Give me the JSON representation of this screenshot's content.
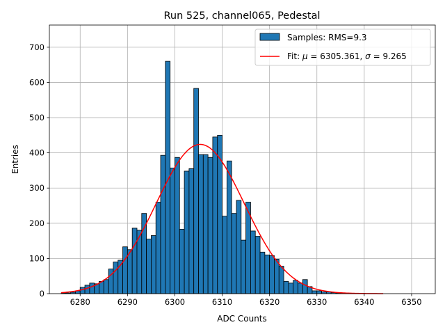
{
  "chart_data": {
    "type": "bar",
    "title": "Run 525, channel065, Pedestal",
    "xlabel": "ADC Counts",
    "ylabel": "Entries",
    "xlim": [
      6273.5,
      6355
    ],
    "ylim": [
      0,
      763
    ],
    "xticks": [
      6280,
      6290,
      6300,
      6310,
      6320,
      6330,
      6340,
      6350
    ],
    "yticks": [
      0,
      100,
      200,
      300,
      400,
      500,
      600,
      700
    ],
    "grid": true,
    "legend_position": "top-right",
    "bin_width": 1,
    "bin_left_edges": [
      6276,
      6277,
      6278,
      6279,
      6280,
      6281,
      6282,
      6283,
      6284,
      6285,
      6286,
      6287,
      6288,
      6289,
      6290,
      6291,
      6292,
      6293,
      6294,
      6295,
      6296,
      6297,
      6298,
      6299,
      6300,
      6301,
      6302,
      6303,
      6304,
      6305,
      6306,
      6307,
      6308,
      6309,
      6310,
      6311,
      6312,
      6313,
      6314,
      6315,
      6316,
      6317,
      6318,
      6319,
      6320,
      6321,
      6322,
      6323,
      6324,
      6325,
      6326,
      6327,
      6328,
      6329,
      6330,
      6331,
      6332,
      6333,
      6334,
      6335,
      6336,
      6337,
      6338,
      6339,
      6340
    ],
    "counts": [
      2,
      2,
      4,
      8,
      18,
      24,
      30,
      28,
      35,
      40,
      70,
      90,
      95,
      133,
      125,
      186,
      180,
      228,
      155,
      165,
      260,
      393,
      660,
      357,
      387,
      183,
      348,
      355,
      583,
      395,
      395,
      387,
      445,
      450,
      220,
      377,
      228,
      265,
      152,
      260,
      178,
      163,
      118,
      110,
      108,
      98,
      78,
      35,
      30,
      38,
      30,
      40,
      20,
      8,
      8,
      5,
      5,
      3,
      2,
      1,
      1,
      1,
      1,
      0,
      0
    ],
    "series": [
      {
        "name": "Samples",
        "type": "histogram",
        "label": "Samples: RMS=9.3",
        "color": "#1f77b4",
        "edge_color": "#000000"
      },
      {
        "name": "Fit",
        "type": "line",
        "label": "Fit: μ = 6305.361, σ = 9.265",
        "color": "#ff0000",
        "mu": 6305.361,
        "sigma": 9.265,
        "amplitude": 424,
        "x_range": [
          6276,
          6344
        ]
      }
    ]
  },
  "legend": {
    "samples_label": "Samples: RMS=9.3",
    "fit_prefix": "Fit: ",
    "mu_symbol": "μ",
    "mu_text": " = 6305.361, ",
    "sigma_symbol": "σ",
    "sigma_text": " = 9.265"
  }
}
